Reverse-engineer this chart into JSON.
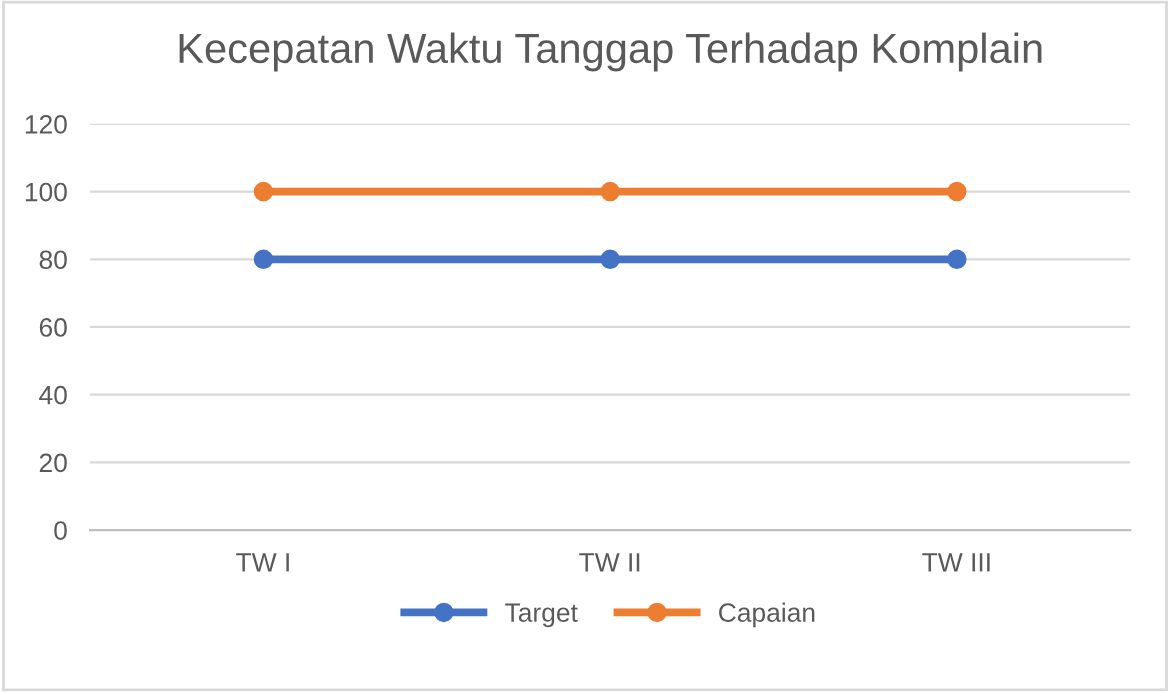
{
  "chart_data": {
    "type": "line",
    "title": "Kecepatan Waktu Tanggap Terhadap Komplain",
    "categories": [
      "TW I",
      "TW II",
      "TW III"
    ],
    "series": [
      {
        "name": "Target",
        "color": "#4472c4",
        "values": [
          80,
          80,
          80
        ]
      },
      {
        "name": "Capaian",
        "color": "#ed7d31",
        "values": [
          100,
          100,
          100
        ]
      }
    ],
    "ylim": [
      0,
      120
    ],
    "yticks": [
      0,
      20,
      40,
      60,
      80,
      100,
      120
    ],
    "grid": "y",
    "legend": "bottom",
    "marker": "circle",
    "line_style": "solid"
  }
}
